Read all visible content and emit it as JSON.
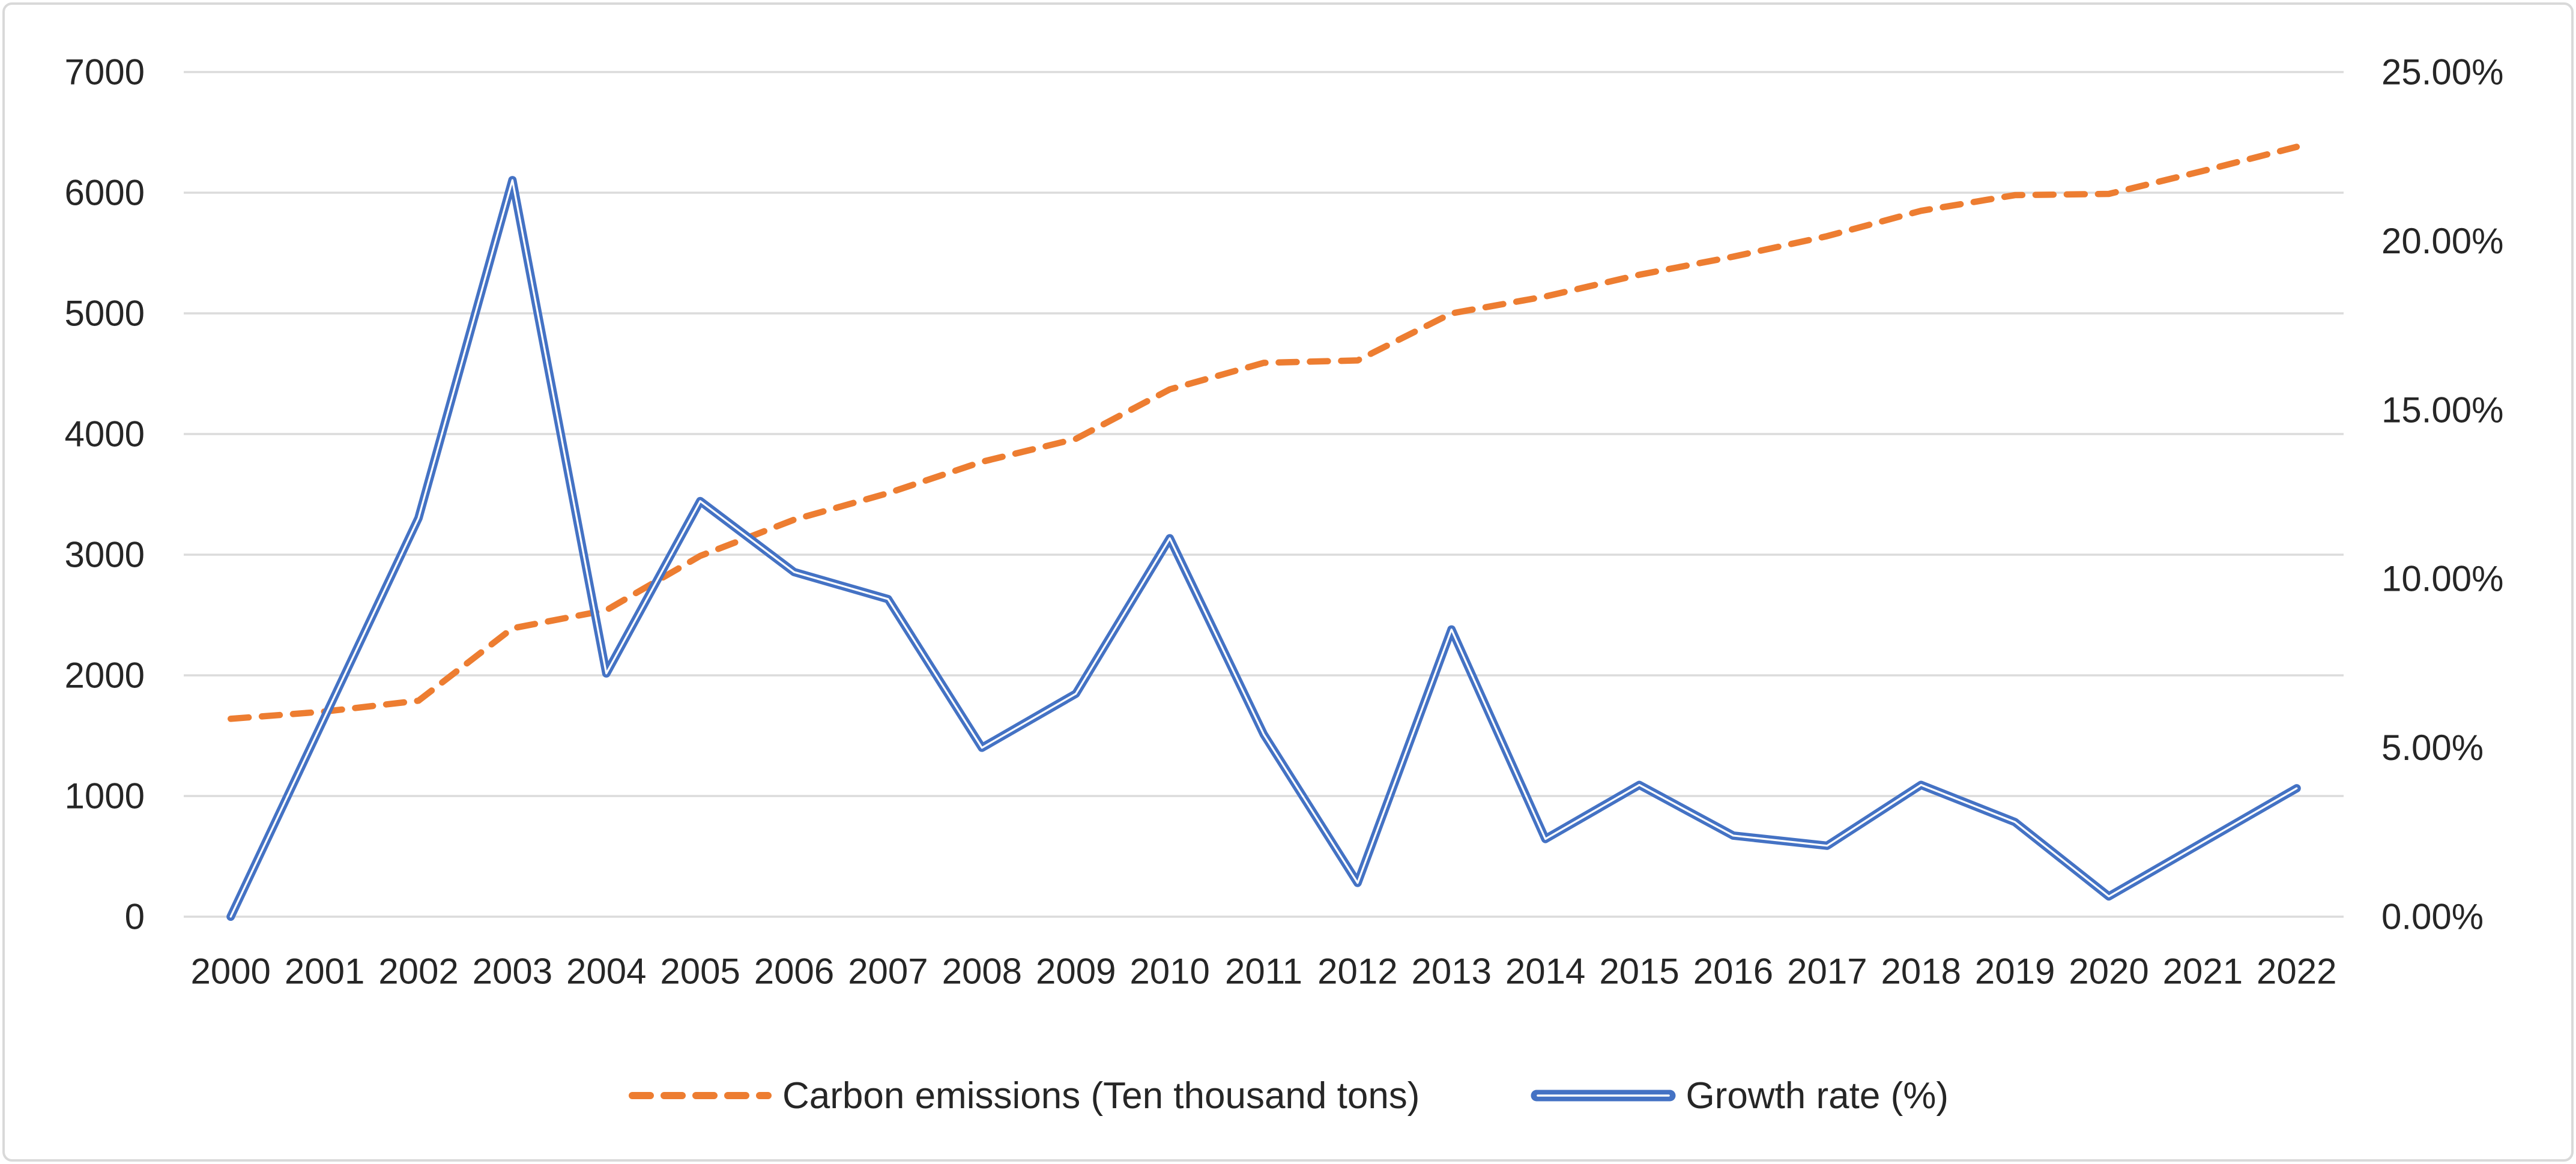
{
  "chart_data": {
    "type": "line",
    "title": "",
    "categories": [
      "2000",
      "2001",
      "2002",
      "2003",
      "2004",
      "2005",
      "2006",
      "2007",
      "2008",
      "2009",
      "2010",
      "2011",
      "2012",
      "2013",
      "2014",
      "2015",
      "2016",
      "2017",
      "2018",
      "2019",
      "2020",
      "2021",
      "2022"
    ],
    "series": [
      {
        "name": "Carbon emissions（Ten thousand tons）",
        "axis": "left",
        "line_style": "dashed",
        "color": "#ED7D31",
        "values": [
          1640,
          1700,
          1790,
          2390,
          2540,
          2990,
          3290,
          3510,
          3770,
          3960,
          4370,
          4590,
          4610,
          5000,
          5140,
          5320,
          5470,
          5640,
          5850,
          5980,
          5990,
          6180,
          6380
        ]
      },
      {
        "name": "Growth rate（%）",
        "axis": "right",
        "line_style": "solid-compound",
        "color": "#4472C4",
        "values": [
          0.0,
          5.9,
          11.8,
          21.8,
          7.2,
          12.3,
          10.2,
          9.4,
          5.0,
          6.6,
          11.2,
          5.4,
          1.0,
          8.5,
          2.3,
          3.9,
          2.4,
          2.1,
          3.9,
          2.8,
          0.6,
          2.2,
          3.8
        ]
      }
    ],
    "left_axis": {
      "min": 0,
      "max": 7000,
      "tick_labels": [
        "0",
        "1000",
        "2000",
        "3000",
        "4000",
        "5000",
        "6000",
        "7000"
      ]
    },
    "right_axis": {
      "min": 0,
      "max": 25,
      "tick_labels": [
        "0.00%",
        "5.00%",
        "10.00%",
        "15.00%",
        "20.00%",
        "25.00%"
      ]
    },
    "grid": true,
    "legend_position": "bottom"
  },
  "legend": {
    "items": [
      {
        "label": "Carbon emissions（Ten thousand tons）",
        "swatch": "orange-dashed-line"
      },
      {
        "label": "Growth rate（%）",
        "swatch": "blue-compound-line"
      }
    ]
  },
  "colors": {
    "emissions_line": "#ED7D31",
    "growth_line": "#4472C4",
    "gridline": "#DBDBDB",
    "tick_text": "#262626",
    "frame_border": "#D9D9D9",
    "background": "#FFFFFF"
  }
}
